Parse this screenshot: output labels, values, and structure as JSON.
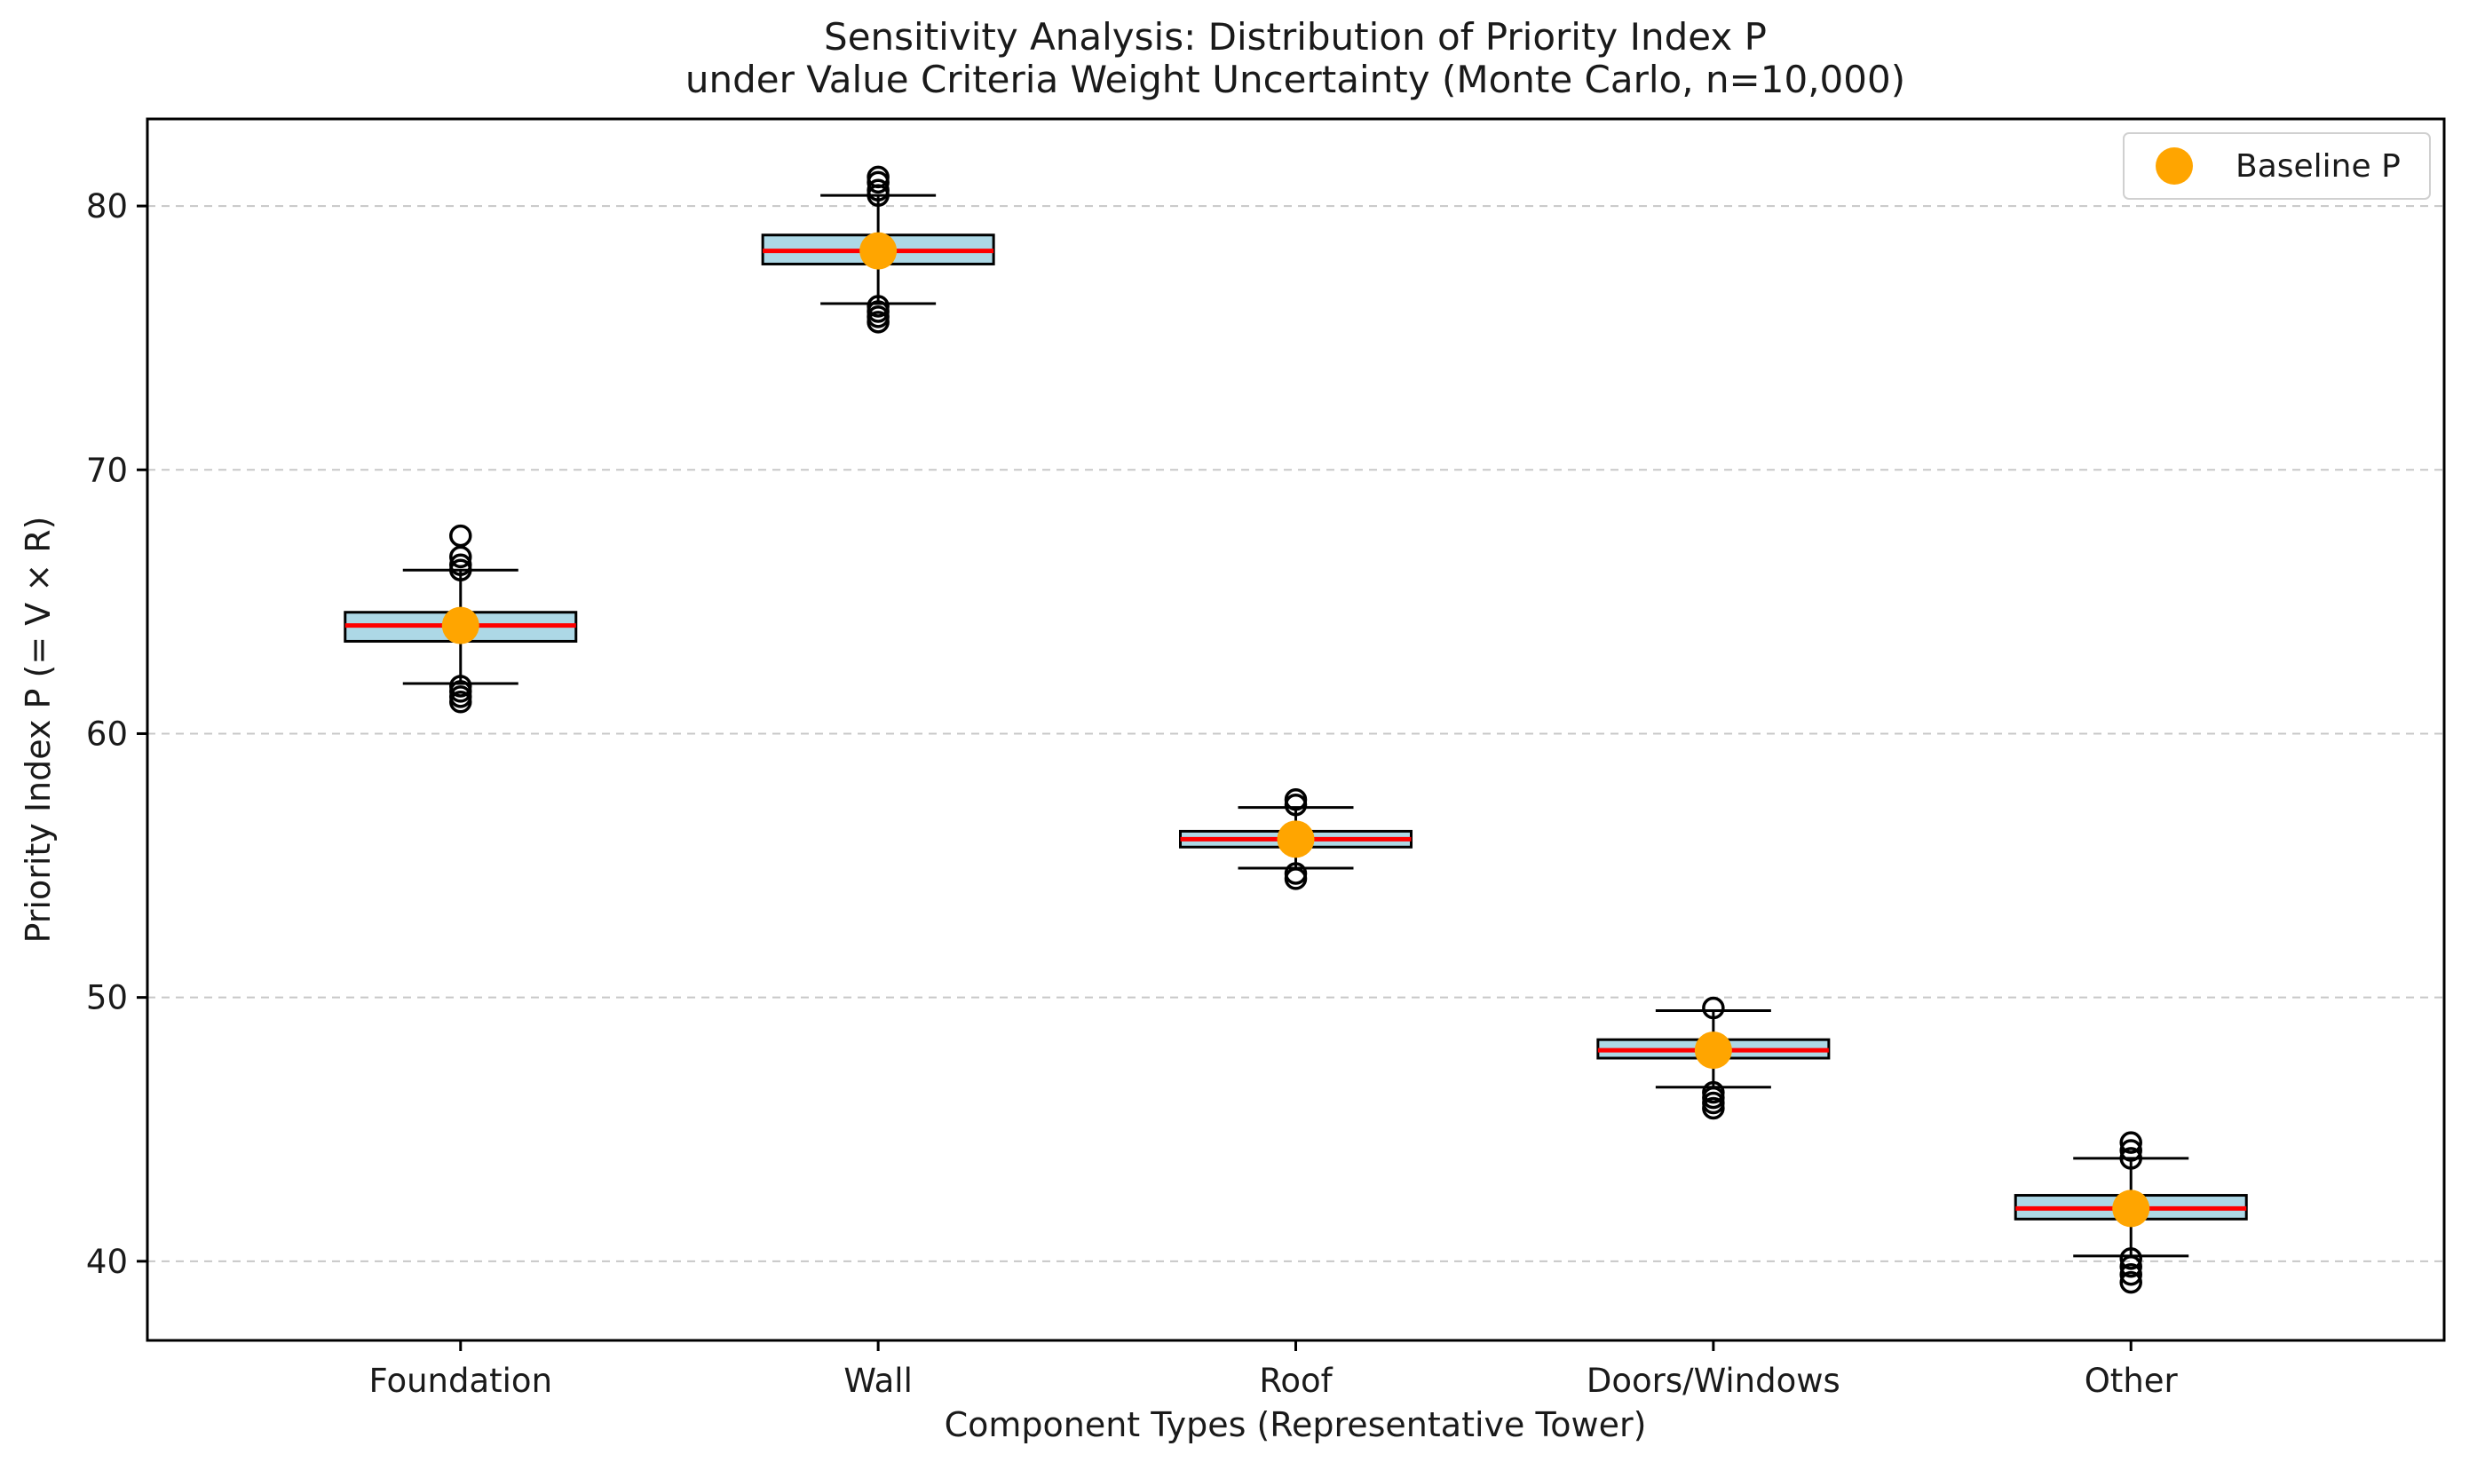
{
  "chart_data": {
    "type": "box",
    "title_lines": [
      "Sensitivity Analysis: Distribution of Priority Index P",
      "under Value Criteria Weight Uncertainty (Monte Carlo, n=10,000)"
    ],
    "xlabel": "Component Types (Representative Tower)",
    "ylabel": "Priority Index P (= V × R)",
    "ylim": [
      37,
      83.3
    ],
    "yticks": [
      40,
      50,
      60,
      70,
      80
    ],
    "grid": "y-dashed",
    "legend": {
      "position": "top-right",
      "entries": [
        "Baseline P"
      ]
    },
    "categories": [
      "Foundation",
      "Wall",
      "Roof",
      "Doors/Windows",
      "Other"
    ],
    "boxes": [
      {
        "q1": 63.5,
        "median": 64.1,
        "q3": 64.6,
        "whisker_low": 61.9,
        "whisker_high": 66.2,
        "outliers": [
          61.2,
          61.4,
          61.6,
          61.8,
          66.2,
          66.4,
          66.7,
          67.5
        ],
        "baseline": 64.1
      },
      {
        "q1": 77.8,
        "median": 78.3,
        "q3": 78.9,
        "whisker_low": 76.3,
        "whisker_high": 80.4,
        "outliers": [
          75.6,
          75.8,
          76.0,
          76.2,
          80.4,
          80.6,
          80.9,
          81.1
        ],
        "baseline": 78.3
      },
      {
        "q1": 55.7,
        "median": 56.0,
        "q3": 56.3,
        "whisker_low": 54.9,
        "whisker_high": 57.2,
        "outliers": [
          54.5,
          54.7,
          57.3,
          57.5
        ],
        "baseline": 56.0
      },
      {
        "q1": 47.7,
        "median": 48.0,
        "q3": 48.4,
        "whisker_low": 46.6,
        "whisker_high": 49.5,
        "outliers": [
          45.8,
          46.0,
          46.2,
          46.4,
          49.6
        ],
        "baseline": 48.0
      },
      {
        "q1": 41.6,
        "median": 42.0,
        "q3": 42.5,
        "whisker_low": 40.2,
        "whisker_high": 43.9,
        "outliers": [
          39.2,
          39.5,
          39.8,
          40.1,
          43.9,
          44.2,
          44.5
        ],
        "baseline": 42.0
      }
    ],
    "colors": {
      "box_fill": "#add8e6",
      "median": "#ff0000",
      "baseline": "#ffa500",
      "grid": "#c8c8c8",
      "edge": "#000000"
    }
  }
}
